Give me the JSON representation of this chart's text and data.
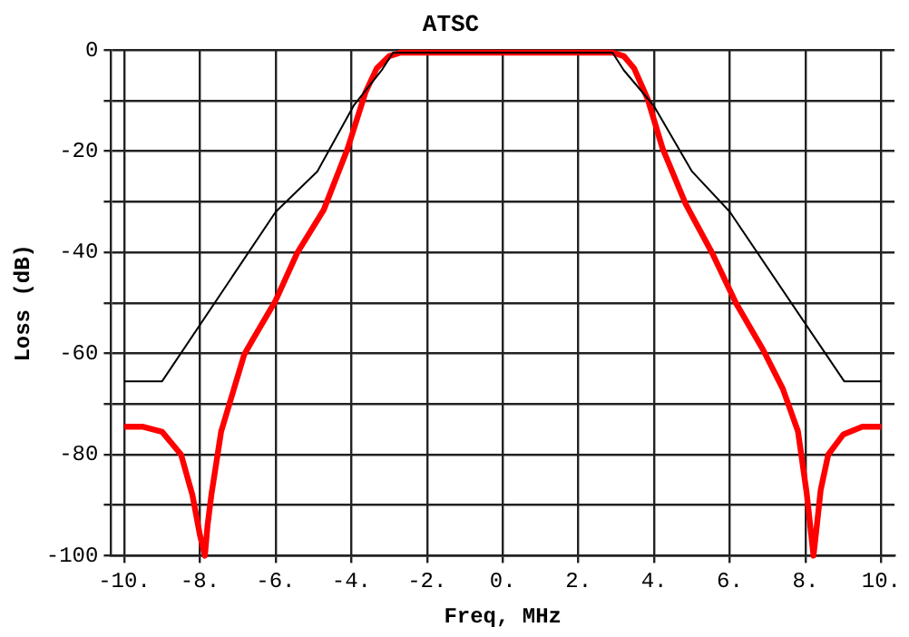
{
  "chart_data": {
    "type": "line",
    "title": "ATSC",
    "xlabel": "Freq, MHz",
    "ylabel": "Loss (dB)",
    "xlim": [
      -10.35,
      10.35
    ],
    "xticks": [
      {
        "value": -10,
        "label": "-10."
      },
      {
        "value": -8,
        "label": "-8."
      },
      {
        "value": -6,
        "label": "-6."
      },
      {
        "value": -4,
        "label": "-4."
      },
      {
        "value": -2,
        "label": "-2."
      },
      {
        "value": 0,
        "label": "0."
      },
      {
        "value": 2,
        "label": "2."
      },
      {
        "value": 4,
        "label": "4."
      },
      {
        "value": 6,
        "label": "6."
      },
      {
        "value": 8,
        "label": "8."
      },
      {
        "value": 10,
        "label": "10."
      }
    ],
    "ylim": [
      -100,
      0
    ],
    "yticks": [
      -100,
      {
        "value": -90,
        "label": null
      },
      -80,
      {
        "value": -70,
        "label": null
      },
      -60,
      {
        "value": -50,
        "label": null
      },
      -40,
      {
        "value": -30,
        "label": null
      },
      -20,
      {
        "value": -10,
        "label": null
      },
      0
    ],
    "grid": true,
    "legend": false,
    "marker": "none",
    "line_style": "solid",
    "series": [
      {
        "color": "#000000",
        "x": [
          -10,
          -9,
          -6,
          -4.9,
          -3.94,
          -3.2,
          -2.9,
          2.9,
          3.2,
          3.99,
          5.0,
          6.0,
          9.02,
          10
        ],
        "values": [
          -65.5,
          -65.5,
          -32,
          -24,
          -11,
          -4,
          -0.5,
          -0.5,
          -4,
          -11,
          -24,
          -32,
          -65.5,
          -65.5
        ]
      },
      {
        "color": "#ff0000",
        "x": [
          -10,
          -9.5,
          -9,
          -8.5,
          -8.2,
          -8.0,
          -7.87,
          -7.8,
          -7.7,
          -7.44,
          -6.83,
          -6.6,
          -6.0,
          -5.43,
          -4.73,
          -4.1,
          -3.63,
          -3.33,
          -3.0,
          -2.7,
          2.9,
          3.2,
          3.47,
          3.83,
          4.22,
          4.83,
          5.53,
          6.16,
          6.88,
          7.4,
          7.8,
          8.03,
          8.21,
          8.3,
          8.4,
          8.6,
          9.0,
          9.5,
          10
        ],
        "values": [
          -74.5,
          -74.5,
          -75.5,
          -80,
          -88,
          -96,
          -100,
          -94,
          -88,
          -75.4,
          -60.2,
          -57.2,
          -49.5,
          -40.1,
          -31.6,
          -19.5,
          -8.4,
          -3.6,
          -1.2,
          -0.5,
          -0.5,
          -1.2,
          -3.6,
          -9.7,
          -19.4,
          -30.4,
          -40.1,
          -50,
          -59.3,
          -67,
          -75.4,
          -87.6,
          -100,
          -94,
          -87,
          -80,
          -76,
          -74.5,
          -74.5
        ]
      }
    ]
  }
}
